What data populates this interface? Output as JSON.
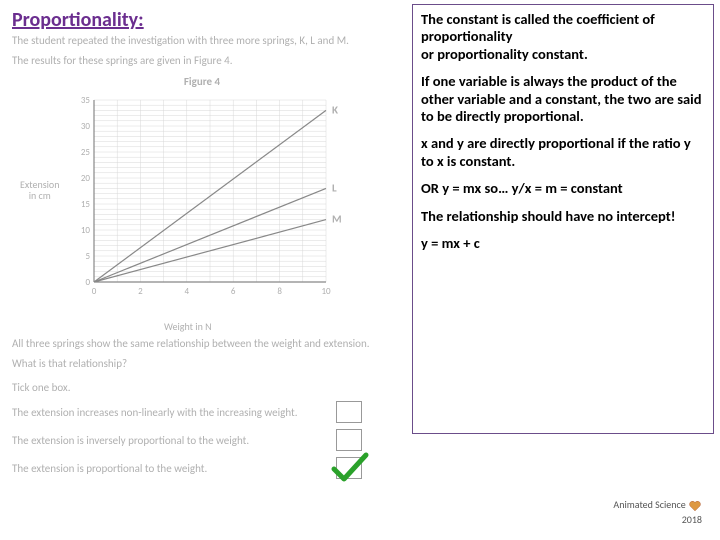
{
  "title": {
    "text": "Proportionality:",
    "color": "#6b2e8f"
  },
  "left": {
    "line1": "The student repeated the investigation with three more springs, K, L and M.",
    "line2": "The results for these springs are given in Figure 4.",
    "figcap": "Figure 4",
    "line3": "All three springs show the same relationship between the weight and extension.",
    "line4": "What is that relationship?",
    "tick": "Tick one box.",
    "opts": [
      "The extension increases non-linearly with the increasing weight.",
      "The extension is inversely proportional to the weight.",
      "The extension is proportional to the weight."
    ]
  },
  "chart": {
    "type": "line",
    "ylabel1": "Extension",
    "ylabel2": "in cm",
    "xlabel": "Weight in N",
    "xlim": [
      0,
      10
    ],
    "ylim": [
      0,
      35
    ],
    "xticks": [
      0,
      2,
      4,
      6,
      8,
      10
    ],
    "yticks": [
      0,
      5,
      10,
      15,
      20,
      25,
      30,
      35
    ],
    "grid_color": "#d8d8d8",
    "axis_color": "#888888",
    "text_color": "#b0b0b0",
    "background_color": "#ffffff",
    "line_color": "#888888",
    "line_width": 1.2,
    "series": [
      {
        "label": "K",
        "x": [
          0,
          10
        ],
        "y": [
          0,
          33
        ]
      },
      {
        "label": "L",
        "x": [
          0,
          10
        ],
        "y": [
          0,
          18
        ]
      },
      {
        "label": "M",
        "x": [
          0,
          10
        ],
        "y": [
          0,
          12
        ]
      }
    ]
  },
  "right": {
    "p1": "The constant is called the coefficient of proportionality",
    "p1b": "or proportionality constant.",
    "p2": "If one variable is always the product of the other variable and a constant, the two are said to be directly proportional.",
    "p3": "x and y are directly proportional if the ratio y to x is constant.",
    "p4": "OR  y = mx  so… y/x = m  = constant",
    "p5": "The relationship should have no intercept!",
    "p6": "y = mx + c"
  },
  "footer": {
    "brand": "Animated Science",
    "year": "2018"
  },
  "check_color": "#2aa12a"
}
